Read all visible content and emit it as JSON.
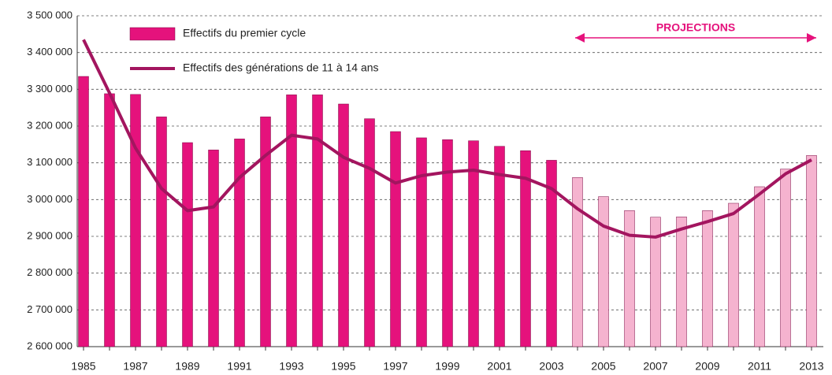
{
  "chart_data": {
    "type": "bar_line",
    "annotation": "PROJECTIONS",
    "legend": "upper left",
    "grid": true,
    "categories": [
      "1985",
      null,
      "1987",
      null,
      "1989",
      null,
      "1991",
      null,
      "1993",
      null,
      "1995",
      null,
      "1997",
      null,
      "1999",
      null,
      "2001",
      null,
      "2003",
      null,
      "2005",
      null,
      "2007",
      null,
      "2009",
      null,
      "2011",
      null,
      "2013"
    ],
    "ylim": [
      2600000,
      3500000
    ],
    "yticks": [
      {
        "value": 2600000,
        "label": "2 600 000"
      },
      {
        "value": 2700000,
        "label": "2 700 000"
      },
      {
        "value": 2800000,
        "label": "2 800 000"
      },
      {
        "value": 2900000,
        "label": "2 900 000"
      },
      {
        "value": 3000000,
        "label": "3 000 000"
      },
      {
        "value": 3100000,
        "label": "3 100 000"
      },
      {
        "value": 3200000,
        "label": "3 200 000"
      },
      {
        "value": 3300000,
        "label": "3 300 000"
      },
      {
        "value": 3400000,
        "label": "3 400 000"
      },
      {
        "value": 3500000,
        "label": "3 500 000"
      }
    ],
    "series": [
      {
        "name": "Effectifs du premier cycle",
        "type": "bar",
        "color": "#e5127c",
        "colors": [
          "#e5127c",
          "#e5127c",
          "#e5127c",
          "#e5127c",
          "#e5127c",
          "#e5127c",
          "#e5127c",
          "#e5127c",
          "#e5127c",
          "#e5127c",
          "#e5127c",
          "#e5127c",
          "#e5127c",
          "#e5127c",
          "#e5127c",
          "#e5127c",
          "#e5127c",
          "#e5127c",
          "#e5127c",
          "#f5b3cf",
          "#f5b3cf",
          "#f5b3cf",
          "#f5b3cf",
          "#f5b3cf",
          "#f5b3cf",
          "#f5b3cf",
          "#f5b3cf",
          "#f5b3cf",
          "#f5b3cf"
        ],
        "values": [
          3335000,
          3288000,
          3286000,
          3225000,
          3155000,
          3135000,
          3165000,
          3225000,
          3285000,
          3285000,
          3260000,
          3220000,
          3185000,
          3168000,
          3163000,
          3160000,
          3145000,
          3133000,
          3107000,
          3060000,
          3008000,
          2970000,
          2952000,
          2953000,
          2970000,
          2990000,
          3035000,
          3083000,
          3120000
        ]
      },
      {
        "name": "Effectifs des générations de 11 à 14 ans",
        "type": "line",
        "color": "#a3155f",
        "values": [
          3435000,
          3290000,
          3140000,
          3030000,
          2970000,
          2980000,
          3060000,
          3120000,
          3175000,
          3165000,
          3115000,
          3085000,
          3045000,
          3065000,
          3075000,
          3080000,
          3068000,
          3058000,
          3030000,
          2975000,
          2928000,
          2903000,
          2898000,
          2920000,
          2940000,
          2962000,
          3015000,
          3070000,
          3108000
        ]
      }
    ]
  }
}
